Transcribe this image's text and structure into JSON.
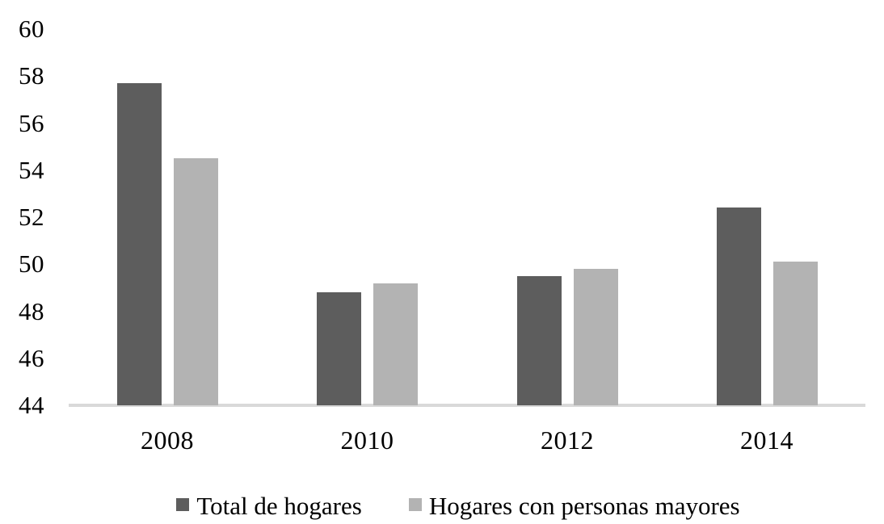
{
  "chart_data": {
    "type": "bar",
    "categories": [
      "2008",
      "2010",
      "2012",
      "2014"
    ],
    "series": [
      {
        "name": "Total de hogares",
        "color": "#5d5d5d",
        "values": [
          57.7,
          48.8,
          49.5,
          52.4
        ]
      },
      {
        "name": "Hogares con personas mayores",
        "color": "#b3b3b3",
        "values": [
          54.5,
          49.2,
          49.8,
          50.1
        ]
      }
    ],
    "title": "",
    "xlabel": "",
    "ylabel": "",
    "ylim": [
      44,
      60
    ],
    "ytick_step": 2,
    "ytick_labels": [
      "44",
      "46",
      "48",
      "50",
      "52",
      "54",
      "56",
      "58",
      "60"
    ],
    "grid": false,
    "axis_line_color": "#d9d9d9",
    "text_color": "#000000",
    "legend_position": "bottom"
  }
}
